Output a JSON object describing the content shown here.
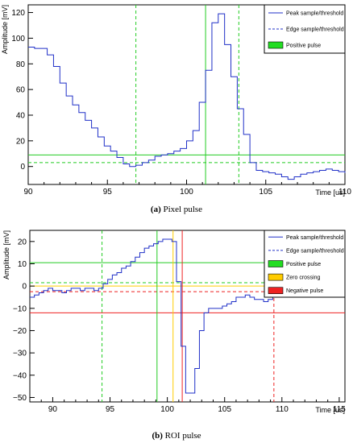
{
  "chart_data": [
    {
      "type": "line",
      "caption_label": "(a)",
      "caption_text": "Pixel pulse",
      "xlabel": "Time [us]",
      "ylabel": "Amplitude [mV]",
      "xlim": [
        90,
        110
      ],
      "ylim": [
        -14,
        126
      ],
      "xticks": [
        90,
        95,
        100,
        105,
        110
      ],
      "xtick_labels": [
        "90",
        "95",
        "100",
        "105",
        "110"
      ],
      "yticks": [
        0,
        20,
        40,
        60,
        80,
        100,
        120
      ],
      "ytick_labels": [
        "0",
        "20",
        "40",
        "60",
        "80",
        "100",
        "120"
      ],
      "legend_position": "top-right",
      "legend": [
        {
          "label": "Peak sample/threshold",
          "style": "line",
          "color": "#2030c8"
        },
        {
          "label": "Edge sample/threshold",
          "style": "dashed",
          "color": "#2030c8"
        },
        {
          "label": "Positive pulse",
          "style": "box",
          "color": "#22dd22"
        }
      ],
      "series": [
        {
          "color": "#2030c8",
          "step": true,
          "x": [
            90.0,
            90.4,
            90.8,
            91.2,
            91.6,
            92.0,
            92.4,
            92.8,
            93.2,
            93.6,
            94.0,
            94.4,
            94.8,
            95.2,
            95.6,
            96.0,
            96.4,
            96.8,
            97.2,
            97.6,
            98.0,
            98.4,
            98.8,
            99.2,
            99.6,
            100.0,
            100.4,
            100.8,
            101.2,
            101.6,
            102.0,
            102.4,
            102.8,
            103.2,
            103.6,
            104.0,
            104.4,
            104.8,
            105.2,
            105.6,
            106.0,
            106.4,
            106.8,
            107.2,
            107.6,
            108.0,
            108.4,
            108.8,
            109.2,
            109.6,
            110.0
          ],
          "y": [
            93,
            92,
            92,
            87,
            78,
            65,
            55,
            48,
            42,
            36,
            30,
            23,
            16,
            12,
            7,
            2,
            0,
            1,
            3,
            5,
            8,
            9,
            10,
            12,
            14,
            20,
            28,
            50,
            75,
            112,
            119,
            95,
            70,
            45,
            25,
            3,
            -3,
            -4,
            -5,
            -6,
            -8,
            -10,
            -8,
            -6,
            -5,
            -4,
            -3,
            -2,
            -3,
            -4,
            -5
          ]
        }
      ],
      "hlines": [
        {
          "y": 9,
          "color": "#22cc22",
          "style": "solid"
        },
        {
          "y": 3,
          "color": "#22cc22",
          "style": "dashed"
        }
      ],
      "vlines": [
        {
          "x": 96.8,
          "color": "#22cc22",
          "style": "dashed"
        },
        {
          "x": 101.2,
          "color": "#22cc22",
          "style": "solid"
        },
        {
          "x": 103.3,
          "color": "#22cc22",
          "style": "dashed"
        }
      ]
    },
    {
      "type": "line",
      "caption_label": "(b)",
      "caption_text": "ROI pulse",
      "xlabel": "Time [us]",
      "ylabel": "Amplitude [mV]",
      "xlim": [
        88,
        115.5
      ],
      "ylim": [
        -52,
        25
      ],
      "xticks": [
        90,
        95,
        100,
        105,
        110,
        115
      ],
      "xtick_labels": [
        "90",
        "95",
        "100",
        "105",
        "110",
        "115"
      ],
      "yticks": [
        -50,
        -40,
        -30,
        -20,
        -10,
        0,
        10,
        20
      ],
      "ytick_labels": [
        "−50",
        "−40",
        "−30",
        "−20",
        "−10",
        "0",
        "10",
        "20"
      ],
      "legend_position": "top-right",
      "legend": [
        {
          "label": "Peak sample/threshold",
          "style": "line",
          "color": "#2030c8"
        },
        {
          "label": "Edge sample/threshold",
          "style": "dashed",
          "color": "#2030c8"
        },
        {
          "label": "Positive pulse",
          "style": "box",
          "color": "#22dd22"
        },
        {
          "label": "Zero crossing",
          "style": "box",
          "color": "#ffcc00"
        },
        {
          "label": "Negative pulse",
          "style": "box",
          "color": "#ee2222"
        }
      ],
      "series": [
        {
          "color": "#2030c8",
          "step": true,
          "x": [
            88.0,
            88.4,
            88.8,
            89.2,
            89.6,
            90.0,
            90.4,
            90.8,
            91.2,
            91.6,
            92.0,
            92.4,
            92.8,
            93.2,
            93.6,
            94.0,
            94.4,
            94.8,
            95.2,
            95.6,
            96.0,
            96.4,
            96.8,
            97.2,
            97.6,
            98.0,
            98.4,
            98.8,
            99.2,
            99.6,
            100.0,
            100.4,
            100.8,
            101.2,
            101.6,
            102.0,
            102.4,
            102.8,
            103.2,
            103.6,
            104.0,
            104.4,
            104.8,
            105.2,
            105.6,
            106.0,
            106.4,
            106.8,
            107.2,
            107.6,
            108.0,
            108.4,
            108.8,
            109.2,
            109.6,
            110.0,
            110.4,
            110.8,
            111.2,
            111.6,
            112.0,
            112.4,
            112.8,
            113.2,
            113.6,
            114.0,
            114.4,
            114.8,
            115.2
          ],
          "y": [
            -5,
            -4,
            -3,
            -2,
            -1,
            -2,
            -2,
            -3,
            -2,
            -1,
            -1,
            -2,
            -1,
            -1,
            -2,
            -1,
            1,
            3,
            5,
            6,
            8,
            9,
            11,
            13,
            15,
            17,
            18,
            19,
            20,
            21,
            21,
            20,
            2,
            -27,
            -48,
            -48,
            -37,
            -20,
            -12,
            -10,
            -10,
            -10,
            -9,
            -8,
            -7,
            -5,
            -5,
            -4,
            -5,
            -6,
            -6,
            -7,
            -6,
            -5,
            -2,
            0,
            -1,
            -2,
            -2,
            -1,
            -1,
            -2,
            -2,
            -3,
            -2,
            -1,
            -1,
            1,
            1
          ]
        }
      ],
      "hlines": [
        {
          "y": 10.5,
          "color": "#22cc22",
          "style": "solid"
        },
        {
          "y": 1.5,
          "color": "#22cc22",
          "style": "dashed"
        },
        {
          "y": 0,
          "color": "#ffcc00",
          "style": "solid"
        },
        {
          "y": -2.5,
          "color": "#ee2222",
          "style": "dashed"
        },
        {
          "y": -12,
          "color": "#ee2222",
          "style": "solid"
        }
      ],
      "vlines": [
        {
          "x": 94.3,
          "color": "#22cc22",
          "style": "dashed"
        },
        {
          "x": 99.1,
          "color": "#22cc22",
          "style": "solid"
        },
        {
          "x": 100.5,
          "color": "#ffcc00",
          "style": "solid"
        },
        {
          "x": 101.3,
          "color": "#ee2222",
          "style": "solid"
        },
        {
          "x": 109.3,
          "color": "#ee2222",
          "style": "dashed"
        }
      ]
    }
  ]
}
